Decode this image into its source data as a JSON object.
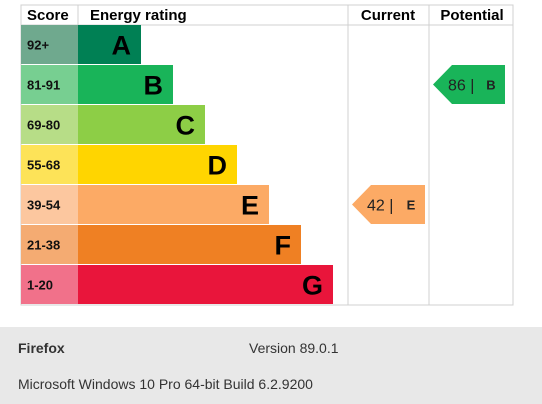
{
  "chart_data": {
    "type": "bar",
    "headers": {
      "score": "Score",
      "rating": "Energy rating",
      "current": "Current",
      "potential": "Potential"
    },
    "bands": [
      {
        "score": "92+",
        "letter": "A",
        "color": "#008054",
        "score_bg": "#6fa98e"
      },
      {
        "score": "81-91",
        "letter": "B",
        "color": "#19b459",
        "score_bg": "#77cf91"
      },
      {
        "score": "69-80",
        "letter": "C",
        "color": "#8dce46",
        "score_bg": "#b7dd87"
      },
      {
        "score": "55-68",
        "letter": "D",
        "color": "#ffd500",
        "score_bg": "#fde358"
      },
      {
        "score": "39-54",
        "letter": "E",
        "color": "#fcaa65",
        "score_bg": "#fcc79f"
      },
      {
        "score": "21-38",
        "letter": "F",
        "color": "#ef8023",
        "score_bg": "#f4ab72"
      },
      {
        "score": "1-20",
        "letter": "G",
        "color": "#e9153b",
        "score_bg": "#f1718a"
      }
    ],
    "current": {
      "value": 42,
      "band": "E",
      "label": "42 |",
      "color": "#fcaa65"
    },
    "potential": {
      "value": 86,
      "band": "B",
      "label": "86 |",
      "color": "#19b459"
    }
  },
  "footer": {
    "browser": "Firefox",
    "version": "Version 89.0.1",
    "os": "Microsoft Windows 10 Pro 64-bit Build 6.2.9200"
  }
}
